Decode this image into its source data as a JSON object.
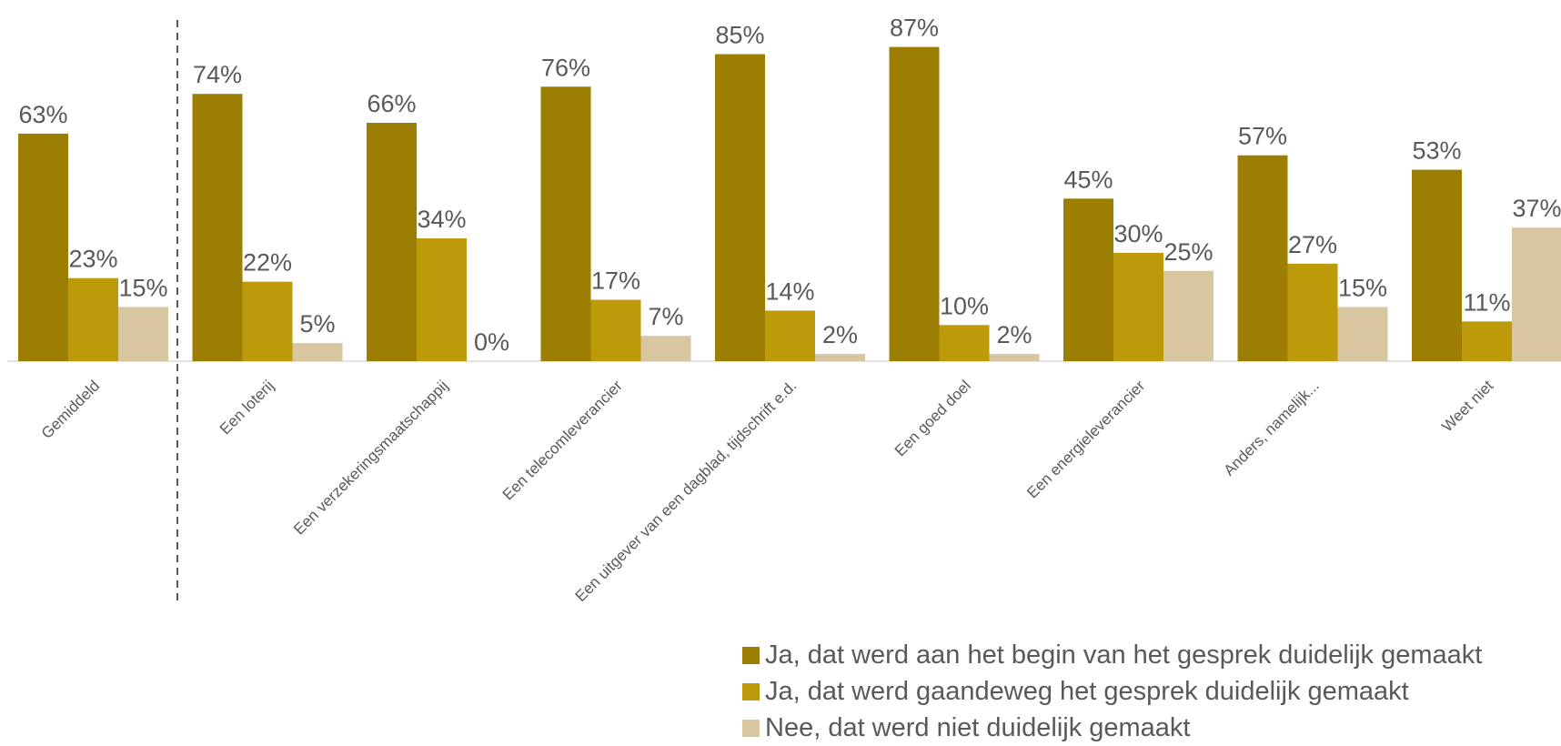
{
  "chart_data": {
    "type": "bar",
    "categories": [
      "Gemiddeld",
      "Een loterij",
      "Een verzekeringsmaatschappij",
      "Een telecomleverancier",
      "Een uitgever van een dagblad, tijdschrift e.d.",
      "Een goed doel",
      "Een energieleverancier",
      "Anders, namelijk...",
      "Weet niet"
    ],
    "series": [
      {
        "name": "Ja, dat werd aan het begin van het gesprek duidelijk gemaakt",
        "color": "#9c7e03",
        "values": [
          63,
          74,
          66,
          76,
          85,
          87,
          45,
          57,
          53
        ],
        "labels": [
          "63%",
          "74%",
          "66%",
          "76%",
          "85%",
          "87%",
          "45%",
          "57%",
          "53%"
        ]
      },
      {
        "name": "Ja, dat werd gaandeweg het gesprek duidelijk gemaakt",
        "color": "#bd9a0a",
        "values": [
          23,
          22,
          34,
          17,
          14,
          10,
          30,
          27,
          11
        ],
        "labels": [
          "23%",
          "22%",
          "34%",
          "17%",
          "14%",
          "10%",
          "30%",
          "27%",
          "11%"
        ]
      },
      {
        "name": "Nee, dat werd niet duidelijk gemaakt",
        "color": "#d8c6a0",
        "values": [
          15,
          5,
          0,
          7,
          2,
          2,
          25,
          15,
          37
        ],
        "labels": [
          "15%",
          "5%",
          "0%",
          "7%",
          "2%",
          "2%",
          "25%",
          "15%",
          "37%"
        ]
      }
    ],
    "ylim": [
      0,
      100
    ],
    "grid": false,
    "legend_position": "bottom-right",
    "separator_after_category": "Gemiddeld"
  }
}
